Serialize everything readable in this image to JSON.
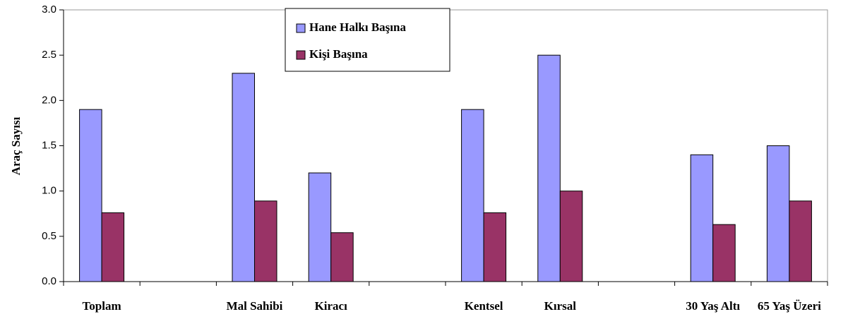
{
  "chart_data": {
    "type": "bar",
    "categories": [
      "Toplam",
      null,
      "Mal Sahibi",
      "Kiracı",
      null,
      "Kentsel",
      "Kırsal",
      null,
      "30 Yaş Altı",
      "65 Yaş Üzeri"
    ],
    "series": [
      {
        "name": "Hane Halkı Başına",
        "color": "#9999ff",
        "values": [
          1.9,
          null,
          2.3,
          1.2,
          null,
          1.9,
          2.5,
          null,
          1.4,
          1.5
        ]
      },
      {
        "name": "Kişi Başına",
        "color": "#993366",
        "values": [
          0.76,
          null,
          0.89,
          0.54,
          null,
          0.76,
          1.0,
          null,
          0.63,
          0.89
        ]
      }
    ],
    "ylabel": "Araç Sayısı",
    "ylim": [
      0,
      3
    ],
    "yticks": [
      {
        "value": 0,
        "label": "0.0"
      },
      {
        "value": 0.5,
        "label": "0.5"
      },
      {
        "value": 1,
        "label": "1.0"
      },
      {
        "value": 1.5,
        "label": "1.5"
      },
      {
        "value": 2,
        "label": "2.0"
      },
      {
        "value": 2.5,
        "label": "2.5"
      },
      {
        "value": 3,
        "label": "3.0"
      }
    ],
    "legend": "top"
  }
}
